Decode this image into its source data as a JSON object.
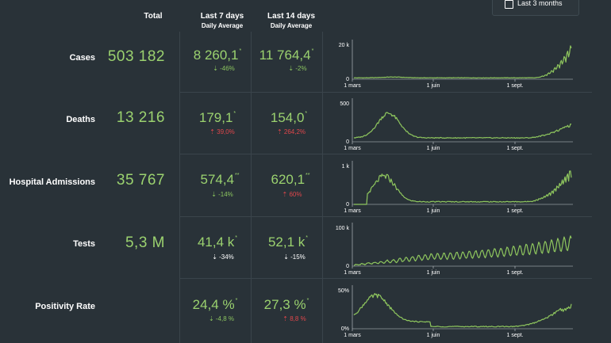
{
  "toggle": {
    "label": "Last 3 months",
    "checked": false
  },
  "headers": {
    "total": "Total",
    "last7": "Last 7 days",
    "last7_sub": "Daily Average",
    "last14": "Last 14 days",
    "last14_sub": "Daily Average"
  },
  "colors": {
    "positive": "#9bd26f",
    "down": "#8bc45f",
    "up": "#e0474b",
    "line": "#8fc75e"
  },
  "rows": [
    {
      "label": "Cases",
      "total": "503 182",
      "avg7": "8 260,1",
      "avg7_mark": "*",
      "chg7": "⇣ -46%",
      "chg7_dir": "down",
      "avg14": "11 764,4",
      "avg14_mark": "*",
      "chg14": "⇣ -2%",
      "chg14_dir": "down"
    },
    {
      "label": "Deaths",
      "total": "13 216",
      "avg7": "179,1",
      "avg7_mark": "*",
      "chg7": "⇡ 39,0%",
      "chg7_dir": "up",
      "avg14": "154,0",
      "avg14_mark": "*",
      "chg14": "⇡ 264,2%",
      "chg14_dir": "up"
    },
    {
      "label": "Hospital Admissions",
      "total": "35 767",
      "avg7": "574,4",
      "avg7_mark": "**",
      "chg7": "⇣ -14%",
      "chg7_dir": "down",
      "avg14": "620,1",
      "avg14_mark": "**",
      "chg14": "⇡ 60%",
      "chg14_dir": "up"
    },
    {
      "label": "Tests",
      "total": "5,3 M",
      "avg7": "41,4 k",
      "avg7_mark": "*",
      "chg7": "⇣ -34%",
      "chg7_dir": "down2",
      "avg14": "52,1 k",
      "avg14_mark": "*",
      "chg14": "⇣ -15%",
      "chg14_dir": "down2"
    },
    {
      "label": "Positivity Rate",
      "total": "",
      "avg7": "24,4 %",
      "avg7_mark": "*",
      "chg7": "⇣ -4,8 %",
      "chg7_dir": "down",
      "avg14": "27,3 %",
      "avg14_mark": "*",
      "chg14": "⇡ 8,8 %",
      "chg14_dir": "up"
    }
  ],
  "chart_data": [
    {
      "type": "line",
      "name": "cases",
      "x_ticks": [
        "1 mars",
        "1 juin",
        "1 sept."
      ],
      "y_ticks": [
        "0",
        "20 k"
      ],
      "ylim": [
        0,
        25000
      ],
      "shape": "cases"
    },
    {
      "type": "line",
      "name": "deaths",
      "x_ticks": [
        "1 mars",
        "1 juin",
        "1 sept."
      ],
      "y_ticks": [
        "0",
        "500"
      ],
      "ylim": [
        0,
        550
      ],
      "shape": "deaths"
    },
    {
      "type": "line",
      "name": "hospital",
      "x_ticks": [
        "1 mars",
        "1 juin",
        "1 sept."
      ],
      "y_ticks": [
        "0",
        "1 k"
      ],
      "ylim": [
        0,
        1100
      ],
      "shape": "hospital"
    },
    {
      "type": "line",
      "name": "tests",
      "x_ticks": [
        "1 mars",
        "1 juin",
        "1 sept."
      ],
      "y_ticks": [
        "0",
        "100 k"
      ],
      "ylim": [
        0,
        110000
      ],
      "shape": "tests"
    },
    {
      "type": "line",
      "name": "positivity",
      "x_ticks": [
        "1 mars",
        "1 juin",
        "1 sept."
      ],
      "y_ticks": [
        "0%",
        "50%"
      ],
      "ylim": [
        0,
        55
      ],
      "shape": "positivity"
    }
  ]
}
